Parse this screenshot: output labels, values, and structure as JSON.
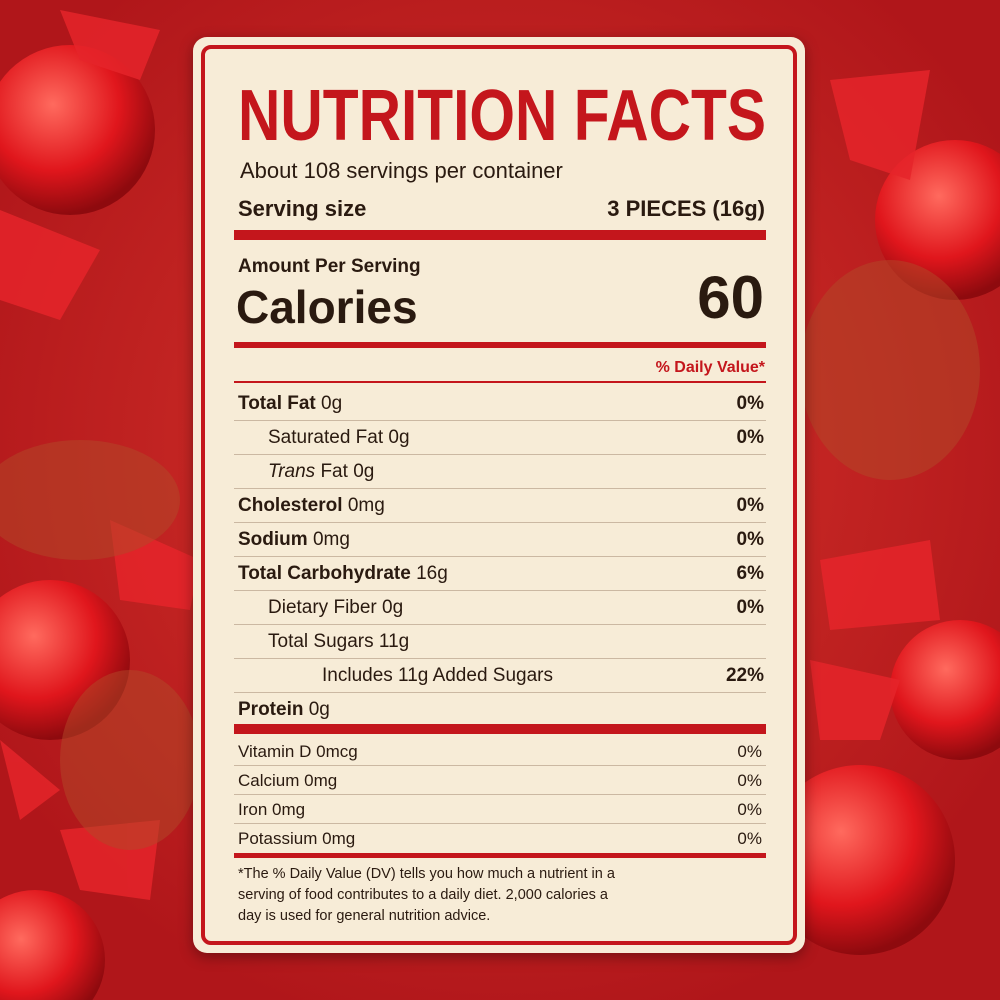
{
  "title": "NUTRITION FACTS",
  "servings": "About 108 servings per container",
  "serving_size": {
    "label": "Serving size",
    "value": "3 PIECES (16g)"
  },
  "amount_per_serving": "Amount Per Serving",
  "calories": {
    "label": "Calories",
    "value": "60"
  },
  "daily_value_header": "% Daily Value*",
  "nutrients": [
    {
      "name": "Total Fat",
      "amount": "0g",
      "dv": "0%",
      "bold": true,
      "indent": 0
    },
    {
      "name": "Saturated Fat",
      "amount": "0g",
      "dv": "0%",
      "bold": false,
      "indent": 1
    },
    {
      "prefix": "Trans",
      "name": "Fat",
      "amount": "0g",
      "bold": false,
      "indent": 1
    },
    {
      "name": "Cholesterol",
      "amount": "0mg",
      "dv": "0%",
      "bold": true,
      "indent": 0
    },
    {
      "name": "Sodium",
      "amount": "0mg",
      "dv": "0%",
      "bold": true,
      "indent": 0
    },
    {
      "name": "Total Carbohydrate",
      "amount": "16g",
      "dv": "6%",
      "bold": true,
      "indent": 0
    },
    {
      "name": "Dietary Fiber",
      "amount": "0g",
      "dv": "0%",
      "bold": false,
      "indent": 1
    },
    {
      "name": "Total Sugars",
      "amount": "11g",
      "bold": false,
      "indent": 1
    },
    {
      "name": "Includes 11g Added Sugars",
      "dv": "22%",
      "bold": false,
      "indent": 2
    },
    {
      "name": "Protein",
      "amount": "0g",
      "bold": true,
      "indent": 0
    }
  ],
  "vitamins": [
    {
      "name": "Vitamin D",
      "amount": "0mcg",
      "dv": "0%"
    },
    {
      "name": "Calcium",
      "amount": "0mg",
      "dv": "0%"
    },
    {
      "name": "Iron",
      "amount": "0mg",
      "dv": "0%"
    },
    {
      "name": "Potassium",
      "amount": "0mg",
      "dv": "0%"
    }
  ],
  "footnote": [
    "*The % Daily Value (DV) tells you how much a nutrient in a",
    "serving of food contributes to a daily diet. 2,000 calories a",
    "day is used for general nutrition advice."
  ]
}
